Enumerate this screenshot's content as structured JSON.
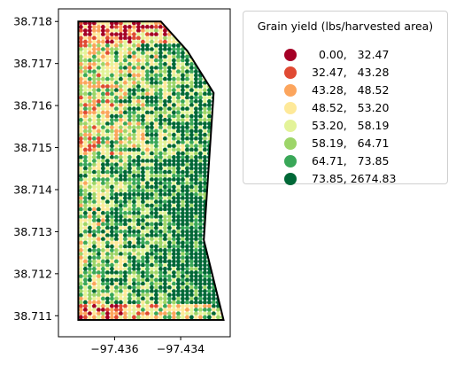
{
  "chart_data": {
    "type": "scatter",
    "title": "",
    "xlabel": "",
    "ylabel": "",
    "xlim": [
      -97.4377,
      -97.4325
    ],
    "ylim": [
      38.7105,
      38.7183
    ],
    "x_ticks": [
      -97.436,
      -97.434
    ],
    "x_tick_labels": [
      "−97.436",
      "−97.434"
    ],
    "y_ticks": [
      38.711,
      38.712,
      38.713,
      38.714,
      38.715,
      38.716,
      38.717,
      38.718
    ],
    "y_tick_labels": [
      "38.711",
      "38.712",
      "38.713",
      "38.714",
      "38.715",
      "38.716",
      "38.717",
      "38.718"
    ],
    "field_boundary": {
      "lon": [
        -97.4371,
        -97.4346,
        -97.4338,
        -97.433,
        -97.4333,
        -97.4327,
        -97.4371,
        -97.4371
      ],
      "lat": [
        38.718,
        38.718,
        38.7173,
        38.7163,
        38.7128,
        38.7109,
        38.7109,
        38.718
      ]
    },
    "legend": {
      "title": "Grain yield (lbs/harvested area)",
      "placement": "outside-right-top",
      "classes": [
        {
          "label": "  0.00,   32.47",
          "color": "#a50026"
        },
        {
          "label": "32.47,   43.28",
          "color": "#e04a33"
        },
        {
          "label": "43.28,   48.52",
          "color": "#fca55d"
        },
        {
          "label": "48.52,   53.20",
          "color": "#fee999"
        },
        {
          "label": "53.20,   58.19",
          "color": "#e3f399"
        },
        {
          "label": "58.19,   64.71",
          "color": "#9dd569"
        },
        {
          "label": "64.71,   73.85",
          "color": "#39a758"
        },
        {
          "label": "73.85, 2674.83",
          "color": "#006837"
        }
      ]
    }
  }
}
